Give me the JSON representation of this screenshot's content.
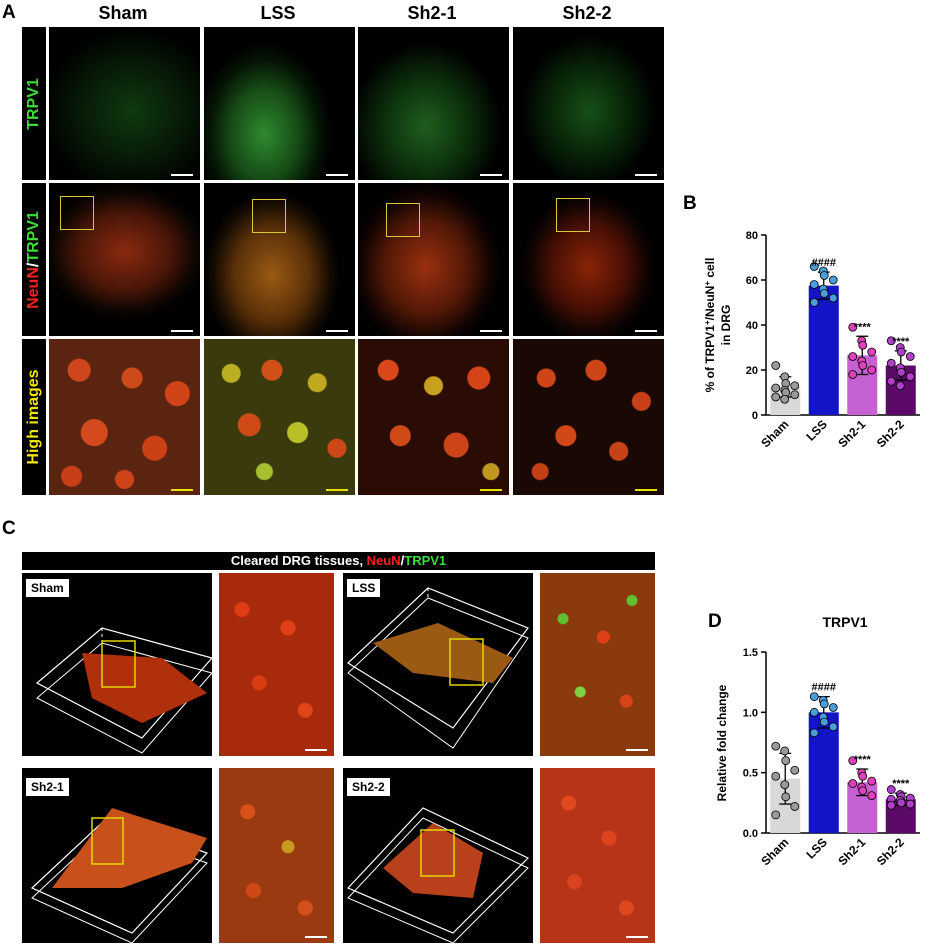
{
  "figure": {
    "panel_letters": {
      "a": "A",
      "b": "B",
      "c": "C",
      "d": "D"
    },
    "panel_a": {
      "columns": [
        "Sham",
        "LSS",
        "Sh2-1",
        "Sh2-2"
      ],
      "rows": [
        {
          "label": "TRPV1",
          "color": "#3ddc3d"
        },
        {
          "label_part1": "NeuN",
          "label_sep": "/",
          "label_part2": "TRPV1",
          "color1": "#ff2020",
          "color2": "#3ddc3d"
        },
        {
          "label": "High images",
          "color": "#f0e400"
        }
      ]
    },
    "panel_c": {
      "banner_prefix": "Cleared DRG tissues, ",
      "banner_neun": "NeuN",
      "banner_sep": "/",
      "banner_trpv1": "TRPV1",
      "tags": [
        "Sham",
        "LSS",
        "Sh2-1",
        "Sh2-2"
      ]
    }
  },
  "chart_data": [
    {
      "panel": "B",
      "type": "bar",
      "title": "",
      "categories": [
        "Sham",
        "LSS",
        "Sh2-1",
        "Sh2-2"
      ],
      "values": [
        12.5,
        57.5,
        26.5,
        22.0
      ],
      "errors": [
        4.5,
        6.0,
        8.5,
        6.5
      ],
      "annotations": [
        "",
        "####",
        "****",
        "****"
      ],
      "points": [
        [
          22,
          17,
          14,
          13,
          12,
          11,
          10,
          9,
          8,
          7
        ],
        [
          66,
          64,
          62,
          60,
          58,
          56,
          54,
          52,
          50
        ],
        [
          39,
          33,
          31,
          28,
          26,
          24,
          22,
          20,
          18
        ],
        [
          33,
          30,
          28,
          26,
          23,
          21,
          19,
          17,
          15,
          13
        ]
      ],
      "colors": [
        "#d8d8d8",
        "#1313c8",
        "#c561d2",
        "#5b0a68"
      ],
      "point_colors": [
        "#9a9a9a",
        "#4a9ed8",
        "#e040b8",
        "#b040c8"
      ],
      "ylabel_line1": "% of TRPV1",
      "ylabel_sup1": "+",
      "ylabel_mid": "/NeuN",
      "ylabel_sup2": "+",
      "ylabel_end": " cell",
      "ylabel_line2": "in DRG",
      "ylim": [
        0,
        80
      ],
      "yticks": [
        "0",
        "20",
        "40",
        "60",
        "80"
      ]
    },
    {
      "panel": "D",
      "type": "bar",
      "title": "TRPV1",
      "categories": [
        "Sham",
        "LSS",
        "Sh2-1",
        "Sh2-2"
      ],
      "values": [
        0.45,
        1.0,
        0.42,
        0.28
      ],
      "errors": [
        0.21,
        0.13,
        0.11,
        0.05
      ],
      "annotations": [
        "",
        "####",
        "****",
        "****"
      ],
      "points": [
        [
          0.72,
          0.68,
          0.6,
          0.52,
          0.47,
          0.4,
          0.3,
          0.22,
          0.15
        ],
        [
          1.13,
          1.1,
          1.07,
          1.04,
          1.0,
          0.96,
          0.92,
          0.88,
          0.83
        ],
        [
          0.6,
          0.5,
          0.47,
          0.43,
          0.41,
          0.38,
          0.35,
          0.31
        ],
        [
          0.36,
          0.32,
          0.3,
          0.29,
          0.28,
          0.27,
          0.25,
          0.24,
          0.23
        ]
      ],
      "colors": [
        "#d8d8d8",
        "#1313c8",
        "#c561d2",
        "#5b0a68"
      ],
      "point_colors": [
        "#9a9a9a",
        "#4a9ed8",
        "#e040b8",
        "#b040c8"
      ],
      "ylabel": "Relative fold change",
      "ylim": [
        0,
        1.5
      ],
      "yticks": [
        "0.0",
        "0.5",
        "1.0",
        "1.5"
      ]
    }
  ]
}
